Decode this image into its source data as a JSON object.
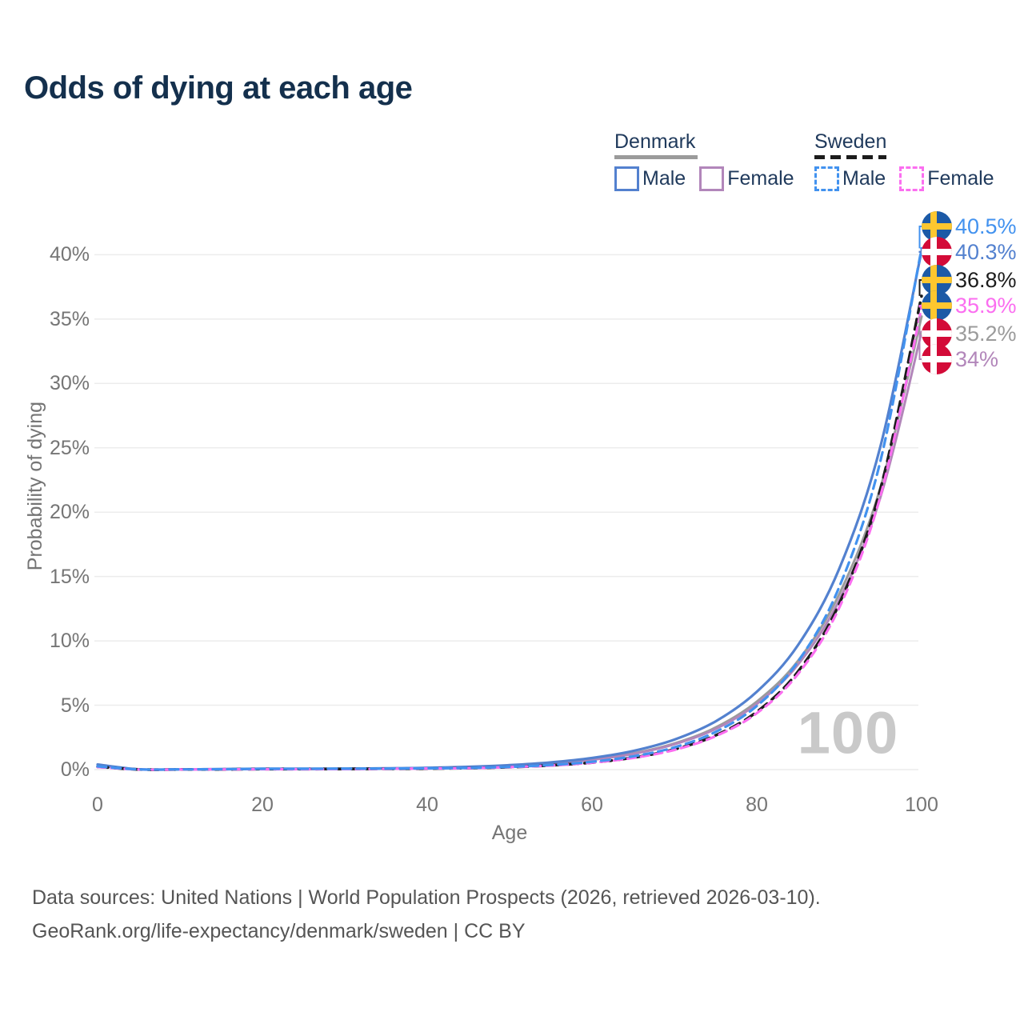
{
  "title": "Odds of dying at each age",
  "watermark": "100",
  "legend": {
    "groups": [
      {
        "name": "Denmark",
        "line_style": "solid",
        "underline_color": "#9b9b9b",
        "items": [
          {
            "label": "Male",
            "color": "#5381cf",
            "dashed": false
          },
          {
            "label": "Female",
            "color": "#b286ba",
            "dashed": false
          }
        ]
      },
      {
        "name": "Sweden",
        "line_style": "dashed",
        "underline_color": "#1c1c1c",
        "items": [
          {
            "label": "Male",
            "color": "#4292ef",
            "dashed": true
          },
          {
            "label": "Female",
            "color": "#fb6ef0",
            "dashed": true
          }
        ]
      }
    ]
  },
  "axes": {
    "x": {
      "label": "Age",
      "ticks": [
        {
          "value": 0,
          "label": "0"
        },
        {
          "value": 20,
          "label": "20"
        },
        {
          "value": 40,
          "label": "40"
        },
        {
          "value": 60,
          "label": "60"
        },
        {
          "value": 80,
          "label": "80"
        },
        {
          "value": 100,
          "label": "100"
        }
      ]
    },
    "y": {
      "label": "Probability of dying",
      "ticks": [
        {
          "value": 0,
          "label": "0%"
        },
        {
          "value": 5,
          "label": "5%"
        },
        {
          "value": 10,
          "label": "10%"
        },
        {
          "value": 15,
          "label": "15%"
        },
        {
          "value": 20,
          "label": "20%"
        },
        {
          "value": 25,
          "label": "25%"
        },
        {
          "value": 30,
          "label": "30%"
        },
        {
          "value": 35,
          "label": "35%"
        },
        {
          "value": 40,
          "label": "40%"
        }
      ]
    }
  },
  "chart_data": {
    "type": "line",
    "title": "Odds of dying at each age",
    "xlabel": "Age",
    "ylabel": "Probability of dying",
    "xlim": [
      0,
      100
    ],
    "ylim": [
      0,
      42
    ],
    "grid": "horizontal",
    "legend_position": "top-right",
    "age_shown": 100,
    "x": [
      0,
      5,
      10,
      15,
      20,
      25,
      30,
      35,
      40,
      45,
      50,
      55,
      60,
      65,
      70,
      75,
      80,
      85,
      90,
      95,
      100
    ],
    "series": [
      {
        "id": "dk_all",
        "name": "Denmark (all)",
        "country": "Denmark",
        "sex": "all",
        "color": "#9b9b9b",
        "dash": null,
        "width": 3,
        "values": [
          0.35,
          0.02,
          0.02,
          0.03,
          0.05,
          0.05,
          0.06,
          0.08,
          0.12,
          0.19,
          0.3,
          0.49,
          0.79,
          1.26,
          2.03,
          3.27,
          5.28,
          8.45,
          13.62,
          21.9,
          35.2
        ]
      },
      {
        "id": "dk_female",
        "name": "Denmark Female",
        "country": "Denmark",
        "sex": "female",
        "color": "#b286ba",
        "dash": null,
        "width": 3,
        "values": [
          0.3,
          0.01,
          0.01,
          0.02,
          0.03,
          0.03,
          0.04,
          0.07,
          0.11,
          0.18,
          0.29,
          0.47,
          0.76,
          1.22,
          1.97,
          3.16,
          5.1,
          8.16,
          13.16,
          21.15,
          34.0
        ]
      },
      {
        "id": "dk_male",
        "name": "Denmark Male",
        "country": "Denmark",
        "sex": "male",
        "color": "#5381cf",
        "dash": null,
        "width": 3.2,
        "values": [
          0.4,
          0.02,
          0.02,
          0.04,
          0.07,
          0.07,
          0.08,
          0.1,
          0.14,
          0.22,
          0.35,
          0.56,
          0.9,
          1.45,
          2.33,
          3.75,
          6.05,
          9.67,
          15.6,
          25.1,
          40.3
        ]
      },
      {
        "id": "se_all",
        "name": "Sweden (all)",
        "country": "Sweden",
        "sex": "all",
        "color": "#1c1c1c",
        "dash": "13 8",
        "width": 3.5,
        "values": [
          0.22,
          0.01,
          0.01,
          0.02,
          0.04,
          0.04,
          0.05,
          0.06,
          0.08,
          0.12,
          0.19,
          0.33,
          0.55,
          0.93,
          1.57,
          2.66,
          4.49,
          7.62,
          12.88,
          21.79,
          36.8
        ]
      },
      {
        "id": "se_female",
        "name": "Sweden Female",
        "country": "Sweden",
        "sex": "female",
        "color": "#fb6ef0",
        "dash": "10 7",
        "width": 3.2,
        "values": [
          0.2,
          0.01,
          0.01,
          0.02,
          0.03,
          0.03,
          0.04,
          0.06,
          0.09,
          0.11,
          0.19,
          0.32,
          0.54,
          0.91,
          1.53,
          2.6,
          4.38,
          7.43,
          12.57,
          21.25,
          35.9
        ]
      },
      {
        "id": "se_male",
        "name": "Sweden Male",
        "country": "Sweden",
        "sex": "male",
        "color": "#4292ef",
        "dash": "11 7",
        "width": 3.2,
        "values": [
          0.25,
          0.02,
          0.02,
          0.03,
          0.06,
          0.06,
          0.07,
          0.08,
          0.1,
          0.13,
          0.21,
          0.36,
          0.61,
          1.03,
          1.73,
          2.93,
          4.94,
          8.39,
          14.18,
          23.97,
          40.5
        ]
      }
    ],
    "end_labels": [
      {
        "text": "40.5%",
        "value": 40.5,
        "flag": "sweden",
        "series": "se_male",
        "color": "#4292ef"
      },
      {
        "text": "40.3%",
        "value": 40.3,
        "flag": "denmark",
        "series": "dk_male",
        "color": "#5381cf"
      },
      {
        "text": "36.8%",
        "value": 36.8,
        "flag": "sweden",
        "series": "se_all",
        "color": "#1c1c1c"
      },
      {
        "text": "35.9%",
        "value": 35.9,
        "flag": "sweden",
        "series": "se_female",
        "color": "#fb6ef0"
      },
      {
        "text": "35.2%",
        "value": 35.2,
        "flag": "denmark",
        "series": "dk_all",
        "color": "#9b9b9b"
      },
      {
        "text": "34%",
        "value": 34.0,
        "flag": "denmark",
        "series": "dk_female",
        "color": "#b286ba"
      }
    ]
  },
  "footer": {
    "line1": "Data sources: United Nations | World Population Prospects (2026, retrieved 2026-03-10).",
    "line2": "GeoRank.org/life-expectancy/denmark/sweden | CC BY"
  }
}
